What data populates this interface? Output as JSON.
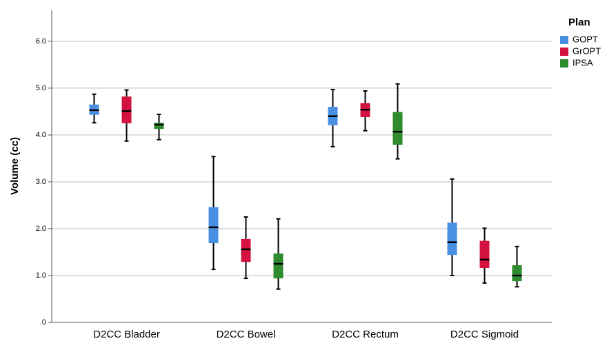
{
  "chart_data": {
    "type": "box",
    "y_label": "Volume (cc)",
    "categories": [
      "D2CC Bladder",
      "D2CC Bowel",
      "D2CC Rectum",
      "D2CC Sigmoid"
    ],
    "ylim": [
      0,
      6.66
    ],
    "yticks": [
      {
        "value": 0,
        "label": ".0"
      },
      {
        "value": 1,
        "label": "1.0"
      },
      {
        "value": 2,
        "label": "2.0"
      },
      {
        "value": 3,
        "label": "3.0"
      },
      {
        "value": 4,
        "label": "4.0"
      },
      {
        "value": 5,
        "label": "5.0"
      },
      {
        "value": 6,
        "label": "6.0"
      }
    ],
    "grid": true,
    "legend_title": "Plan",
    "legend_position": "right",
    "series": [
      {
        "name": "GOPT",
        "color": "#4a90e2",
        "min": [
          4.26,
          1.13,
          3.75,
          1.0
        ],
        "q1": [
          4.43,
          1.69,
          4.21,
          1.44
        ],
        "median": [
          4.53,
          2.03,
          4.4,
          1.71
        ],
        "q3": [
          4.65,
          2.46,
          4.6,
          2.13
        ],
        "max": [
          4.87,
          3.54,
          4.97,
          3.06
        ]
      },
      {
        "name": "GrOPT",
        "color": "#d4123f",
        "min": [
          3.87,
          0.94,
          4.09,
          0.84
        ],
        "q1": [
          4.25,
          1.29,
          4.38,
          1.16
        ],
        "median": [
          4.51,
          1.56,
          4.54,
          1.34
        ],
        "q3": [
          4.82,
          1.78,
          4.68,
          1.74
        ],
        "max": [
          4.96,
          2.25,
          4.94,
          2.01
        ]
      },
      {
        "name": "IPSA",
        "color": "#2e8b2e",
        "min": [
          3.9,
          0.71,
          3.49,
          0.76
        ],
        "q1": [
          4.13,
          0.94,
          3.79,
          0.88
        ],
        "median": [
          4.22,
          1.25,
          4.07,
          1.0
        ],
        "q3": [
          4.26,
          1.47,
          4.49,
          1.22
        ],
        "max": [
          4.44,
          2.21,
          5.09,
          1.62
        ]
      }
    ]
  }
}
